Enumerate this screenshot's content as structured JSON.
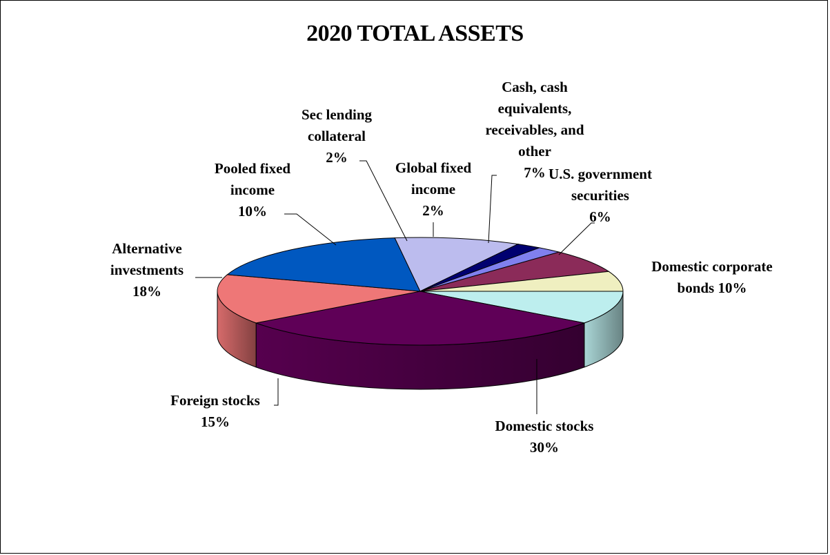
{
  "chart_data": {
    "type": "pie",
    "title": "2020 TOTAL ASSETS",
    "slices": [
      {
        "label": "Domestic corporate bonds",
        "value": 10,
        "pct_label": "10%",
        "color": "#bdeeee"
      },
      {
        "label": "Domestic stocks",
        "value": 30,
        "pct_label": "30%",
        "color": "#5f0057"
      },
      {
        "label": "Foreign stocks",
        "value": 15,
        "pct_label": "15%",
        "color": "#ee7777"
      },
      {
        "label": "Alternative investments",
        "value": 18,
        "pct_label": "18%",
        "color": "#0058c0"
      },
      {
        "label": "Pooled fixed income",
        "value": 10,
        "pct_label": "10%",
        "color": "#bcbcee"
      },
      {
        "label": "Sec lending collateral",
        "value": 2,
        "pct_label": "2%",
        "color": "#000070"
      },
      {
        "label": "Global fixed income",
        "value": 2,
        "pct_label": "2%",
        "color": "#8080ee"
      },
      {
        "label": "Cash, cash equivalents, receivables, and other",
        "value": 7,
        "pct_label": "7%",
        "color": "#8b2b59"
      },
      {
        "label": "U.S. government securities",
        "value": 6,
        "pct_label": "6%",
        "color": "#efefc0"
      }
    ],
    "legend": "none",
    "style": "3d-pie"
  }
}
